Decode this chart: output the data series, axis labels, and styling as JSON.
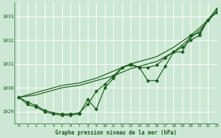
{
  "background_color": "#cce8d4",
  "grid_color": "#ffffff",
  "line_color": "#1a5c1a",
  "title": "Graphe pression niveau de la mer (hPa)",
  "xlim": [
    -0.5,
    23
  ],
  "ylim": [
    1028.5,
    1033.6
  ],
  "yticks": [
    1029,
    1030,
    1031,
    1032,
    1033
  ],
  "xticks": [
    0,
    1,
    2,
    3,
    4,
    5,
    6,
    7,
    8,
    9,
    10,
    11,
    12,
    13,
    14,
    15,
    16,
    17,
    18,
    19,
    20,
    21,
    22,
    23
  ],
  "lines": [
    {
      "x": [
        0,
        1,
        2,
        3,
        4,
        5,
        6,
        7,
        8,
        9,
        10,
        11,
        12,
        13,
        14,
        15,
        16,
        17,
        18,
        19,
        20,
        21,
        22,
        23
      ],
      "y": [
        1029.6,
        1029.65,
        1029.7,
        1029.8,
        1029.9,
        1030.0,
        1030.05,
        1030.1,
        1030.2,
        1030.3,
        1030.4,
        1030.5,
        1030.65,
        1030.8,
        1030.9,
        1031.0,
        1031.1,
        1031.3,
        1031.5,
        1031.8,
        1032.1,
        1032.4,
        1032.8,
        1033.2
      ],
      "marker": null,
      "markersize": 0,
      "linewidth": 0.9
    },
    {
      "x": [
        0,
        1,
        2,
        3,
        4,
        5,
        6,
        7,
        8,
        9,
        10,
        11,
        12,
        13,
        14,
        15,
        16,
        17,
        18,
        19,
        20,
        21,
        22,
        23
      ],
      "y": [
        1029.6,
        1029.7,
        1029.8,
        1029.9,
        1030.0,
        1030.1,
        1030.15,
        1030.2,
        1030.3,
        1030.4,
        1030.55,
        1030.7,
        1030.85,
        1031.0,
        1031.1,
        1031.2,
        1031.3,
        1031.5,
        1031.7,
        1031.95,
        1032.2,
        1032.5,
        1032.85,
        1033.3
      ],
      "marker": null,
      "markersize": 0,
      "linewidth": 0.9
    },
    {
      "x": [
        0,
        1,
        2,
        3,
        4,
        5,
        6,
        7,
        8,
        9,
        10,
        11,
        12,
        13,
        14,
        15,
        16,
        17,
        18,
        19,
        20,
        21,
        22,
        23
      ],
      "y": [
        1029.6,
        1029.3,
        1029.2,
        1029.0,
        1028.9,
        1028.85,
        1028.85,
        1028.9,
        1029.5,
        1029.1,
        1030.0,
        1030.4,
        1030.85,
        1031.0,
        1030.85,
        1030.3,
        1030.3,
        1030.9,
        1031.5,
        1031.5,
        1032.2,
        1032.3,
        1032.85,
        1033.3
      ],
      "marker": "D",
      "markersize": 2.5,
      "linewidth": 0.9
    },
    {
      "x": [
        0,
        1,
        2,
        3,
        4,
        5,
        6,
        7,
        8,
        9,
        10,
        11,
        12,
        13,
        14,
        15,
        16,
        17,
        18,
        19,
        20,
        21,
        22,
        23
      ],
      "y": [
        1029.6,
        1029.4,
        1029.25,
        1029.05,
        1028.95,
        1028.9,
        1028.9,
        1028.95,
        1029.3,
        1029.85,
        1030.15,
        1030.5,
        1030.85,
        1030.95,
        1030.85,
        1030.85,
        1030.95,
        1031.25,
        1031.5,
        1031.7,
        1032.0,
        1032.2,
        1032.85,
        1033.15
      ],
      "marker": "D",
      "markersize": 2.5,
      "linewidth": 0.9
    }
  ]
}
